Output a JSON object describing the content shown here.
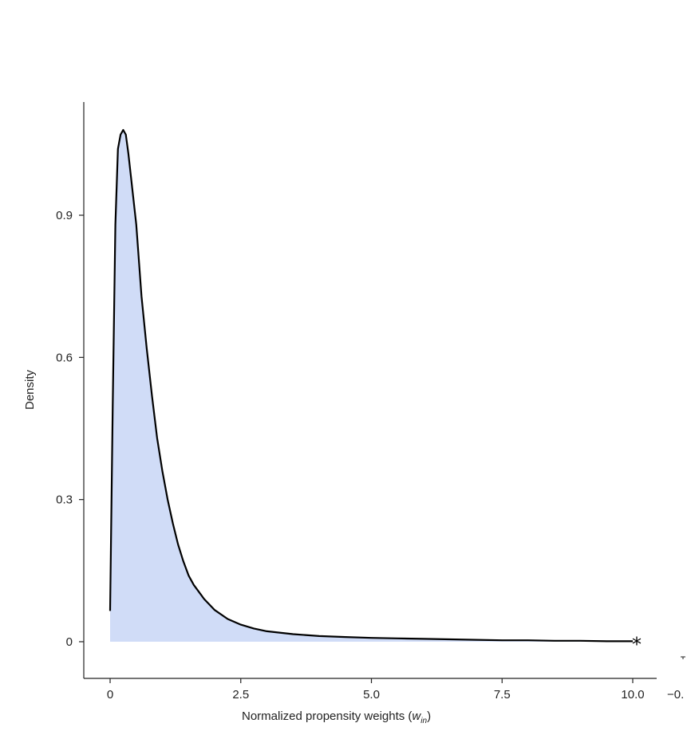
{
  "chart_data": {
    "type": "area",
    "title": "",
    "xlabel": "Normalized propensity weights (",
    "xlabel_var": "w",
    "xlabel_sub": "in",
    "xlabel_close": ")",
    "ylabel": "Density",
    "xlim": [
      -0.5,
      10.5
    ],
    "ylim": [
      -0.08,
      1.14
    ],
    "x_ticks": [
      0,
      2.5,
      5.0,
      7.5,
      10.0
    ],
    "x_tick_labels": [
      "0",
      "2.5",
      "5.0",
      "7.5",
      "10.0"
    ],
    "y_ticks": [
      0,
      0.3,
      0.6,
      0.9
    ],
    "y_tick_labels": [
      "0",
      "0.3",
      "0.6",
      "0.9"
    ],
    "clipped_label": "−0.",
    "end_marker": "*",
    "fill_color": "#d0dcf7",
    "line_color": "#000000",
    "grid": false,
    "series": [
      {
        "x": [
          0.0,
          0.05,
          0.1,
          0.15,
          0.2,
          0.25,
          0.3,
          0.35,
          0.4,
          0.5,
          0.6,
          0.7,
          0.8,
          0.9,
          1.0,
          1.1,
          1.2,
          1.3,
          1.4,
          1.5,
          1.6,
          1.8,
          2.0,
          2.25,
          2.5,
          2.75,
          3.0,
          3.5,
          4.0,
          4.5,
          5.0,
          5.5,
          6.0,
          6.5,
          7.0,
          7.5,
          8.0,
          8.5,
          9.0,
          9.5,
          10.0
        ],
        "y": [
          0.065,
          0.5,
          0.88,
          1.04,
          1.07,
          1.08,
          1.07,
          1.03,
          0.98,
          0.88,
          0.73,
          0.62,
          0.52,
          0.43,
          0.36,
          0.3,
          0.25,
          0.205,
          0.17,
          0.14,
          0.12,
          0.09,
          0.067,
          0.048,
          0.036,
          0.028,
          0.022,
          0.016,
          0.012,
          0.01,
          0.008,
          0.007,
          0.006,
          0.005,
          0.004,
          0.003,
          0.003,
          0.002,
          0.002,
          0.001,
          0.001
        ]
      }
    ]
  }
}
